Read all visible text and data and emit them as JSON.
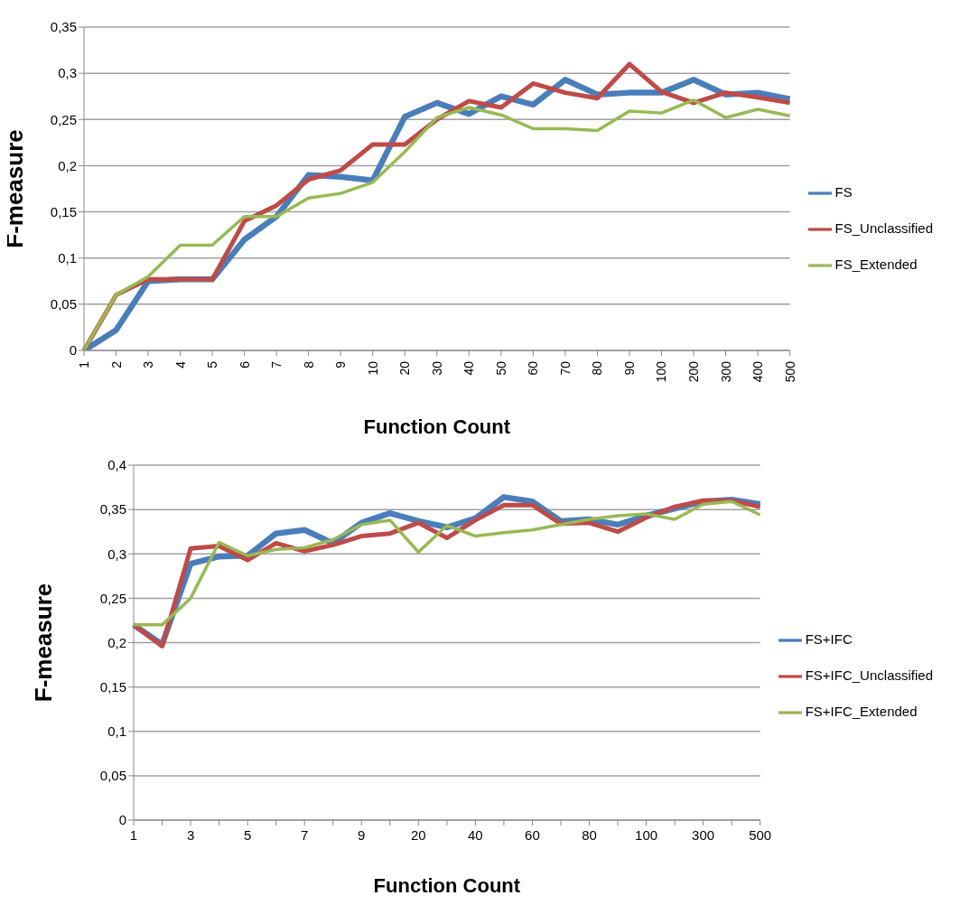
{
  "chart_data": [
    {
      "type": "line",
      "xlabel": "Function Count",
      "ylabel": "F-measure",
      "categories": [
        "1",
        "2",
        "3",
        "4",
        "5",
        "6",
        "7",
        "8",
        "9",
        "10",
        "20",
        "30",
        "40",
        "50",
        "60",
        "70",
        "80",
        "90",
        "100",
        "200",
        "300",
        "400",
        "500"
      ],
      "series": [
        {
          "name": "FS",
          "color": "#4a7ebb",
          "values": [
            0,
            0.022,
            0.075,
            0.077,
            0.077,
            0.12,
            0.145,
            0.19,
            0.188,
            0.184,
            0.253,
            0.268,
            0.256,
            0.275,
            0.266,
            0.293,
            0.277,
            0.279,
            0.279,
            0.293,
            0.277,
            0.279,
            0.272
          ]
        },
        {
          "name": "FS_Unclassified",
          "color": "#be4b48",
          "values": [
            0,
            0.06,
            0.077,
            0.077,
            0.077,
            0.14,
            0.157,
            0.185,
            0.195,
            0.223,
            0.223,
            0.25,
            0.27,
            0.263,
            0.289,
            0.279,
            0.273,
            0.31,
            0.28,
            0.268,
            0.279,
            0.274,
            0.268
          ]
        },
        {
          "name": "FS_Extended",
          "color": "#98b954",
          "values": [
            0,
            0.06,
            0.08,
            0.114,
            0.114,
            0.145,
            0.145,
            0.165,
            0.17,
            0.182,
            0.215,
            0.252,
            0.263,
            0.255,
            0.24,
            0.24,
            0.238,
            0.259,
            0.257,
            0.271,
            0.252,
            0.261,
            0.254
          ]
        }
      ],
      "ylim": [
        0,
        0.35
      ],
      "yticks": [
        0,
        {
          "value": 0.05,
          "label": "0,05"
        },
        {
          "value": 0.1,
          "label": "0,1"
        },
        {
          "value": 0.15,
          "label": "0,15"
        },
        {
          "value": 0.2,
          "label": "0,2"
        },
        {
          "value": 0.25,
          "label": "0,25"
        },
        {
          "value": 0.3,
          "label": "0,3"
        },
        {
          "value": 0.35,
          "label": "0,35"
        }
      ],
      "grid": "y",
      "legend": "right",
      "marker": "none",
      "line_style": "solid"
    },
    {
      "type": "line",
      "xlabel": "Function Count",
      "ylabel": "F-measure",
      "categories": [
        "1",
        null,
        "3",
        null,
        "5",
        null,
        "7",
        null,
        "9",
        null,
        "20",
        null,
        "40",
        null,
        "60",
        null,
        "80",
        null,
        "100",
        null,
        "300",
        null,
        "500"
      ],
      "series": [
        {
          "name": "FS+IFC",
          "color": "#4a7ebb",
          "values": [
            0.22,
            0.198,
            0.289,
            0.297,
            0.298,
            0.323,
            0.327,
            0.312,
            0.335,
            0.346,
            0.337,
            0.33,
            0.34,
            0.364,
            0.359,
            0.337,
            0.339,
            0.333,
            0.343,
            0.351,
            0.359,
            0.361,
            0.356
          ]
        },
        {
          "name": "FS+IFC_Unclassified",
          "color": "#be4b48",
          "values": [
            0.22,
            0.196,
            0.306,
            0.309,
            0.293,
            0.312,
            0.303,
            0.31,
            0.32,
            0.323,
            0.335,
            0.318,
            0.338,
            0.355,
            0.355,
            0.334,
            0.335,
            0.325,
            0.341,
            0.353,
            0.36,
            0.36,
            0.353
          ]
        },
        {
          "name": "FS+IFC_Extended",
          "color": "#98b954",
          "values": [
            0.22,
            0.22,
            0.25,
            0.313,
            0.298,
            0.305,
            0.307,
            0.316,
            0.333,
            0.338,
            0.302,
            0.332,
            0.32,
            0.324,
            0.327,
            0.333,
            0.339,
            0.343,
            0.345,
            0.339,
            0.356,
            0.359,
            0.344
          ]
        }
      ],
      "ylim": [
        0,
        0.4
      ],
      "yticks": [
        0,
        {
          "value": 0.05,
          "label": "0,05"
        },
        {
          "value": 0.1,
          "label": "0,1"
        },
        {
          "value": 0.15,
          "label": "0,15"
        },
        {
          "value": 0.2,
          "label": "0,2"
        },
        {
          "value": 0.25,
          "label": "0,25"
        },
        {
          "value": 0.3,
          "label": "0,3"
        },
        {
          "value": 0.35,
          "label": "0,35"
        },
        {
          "value": 0.4,
          "label": "0,4"
        }
      ],
      "grid": "y",
      "legend": "right",
      "marker": "none",
      "line_style": "solid"
    }
  ]
}
